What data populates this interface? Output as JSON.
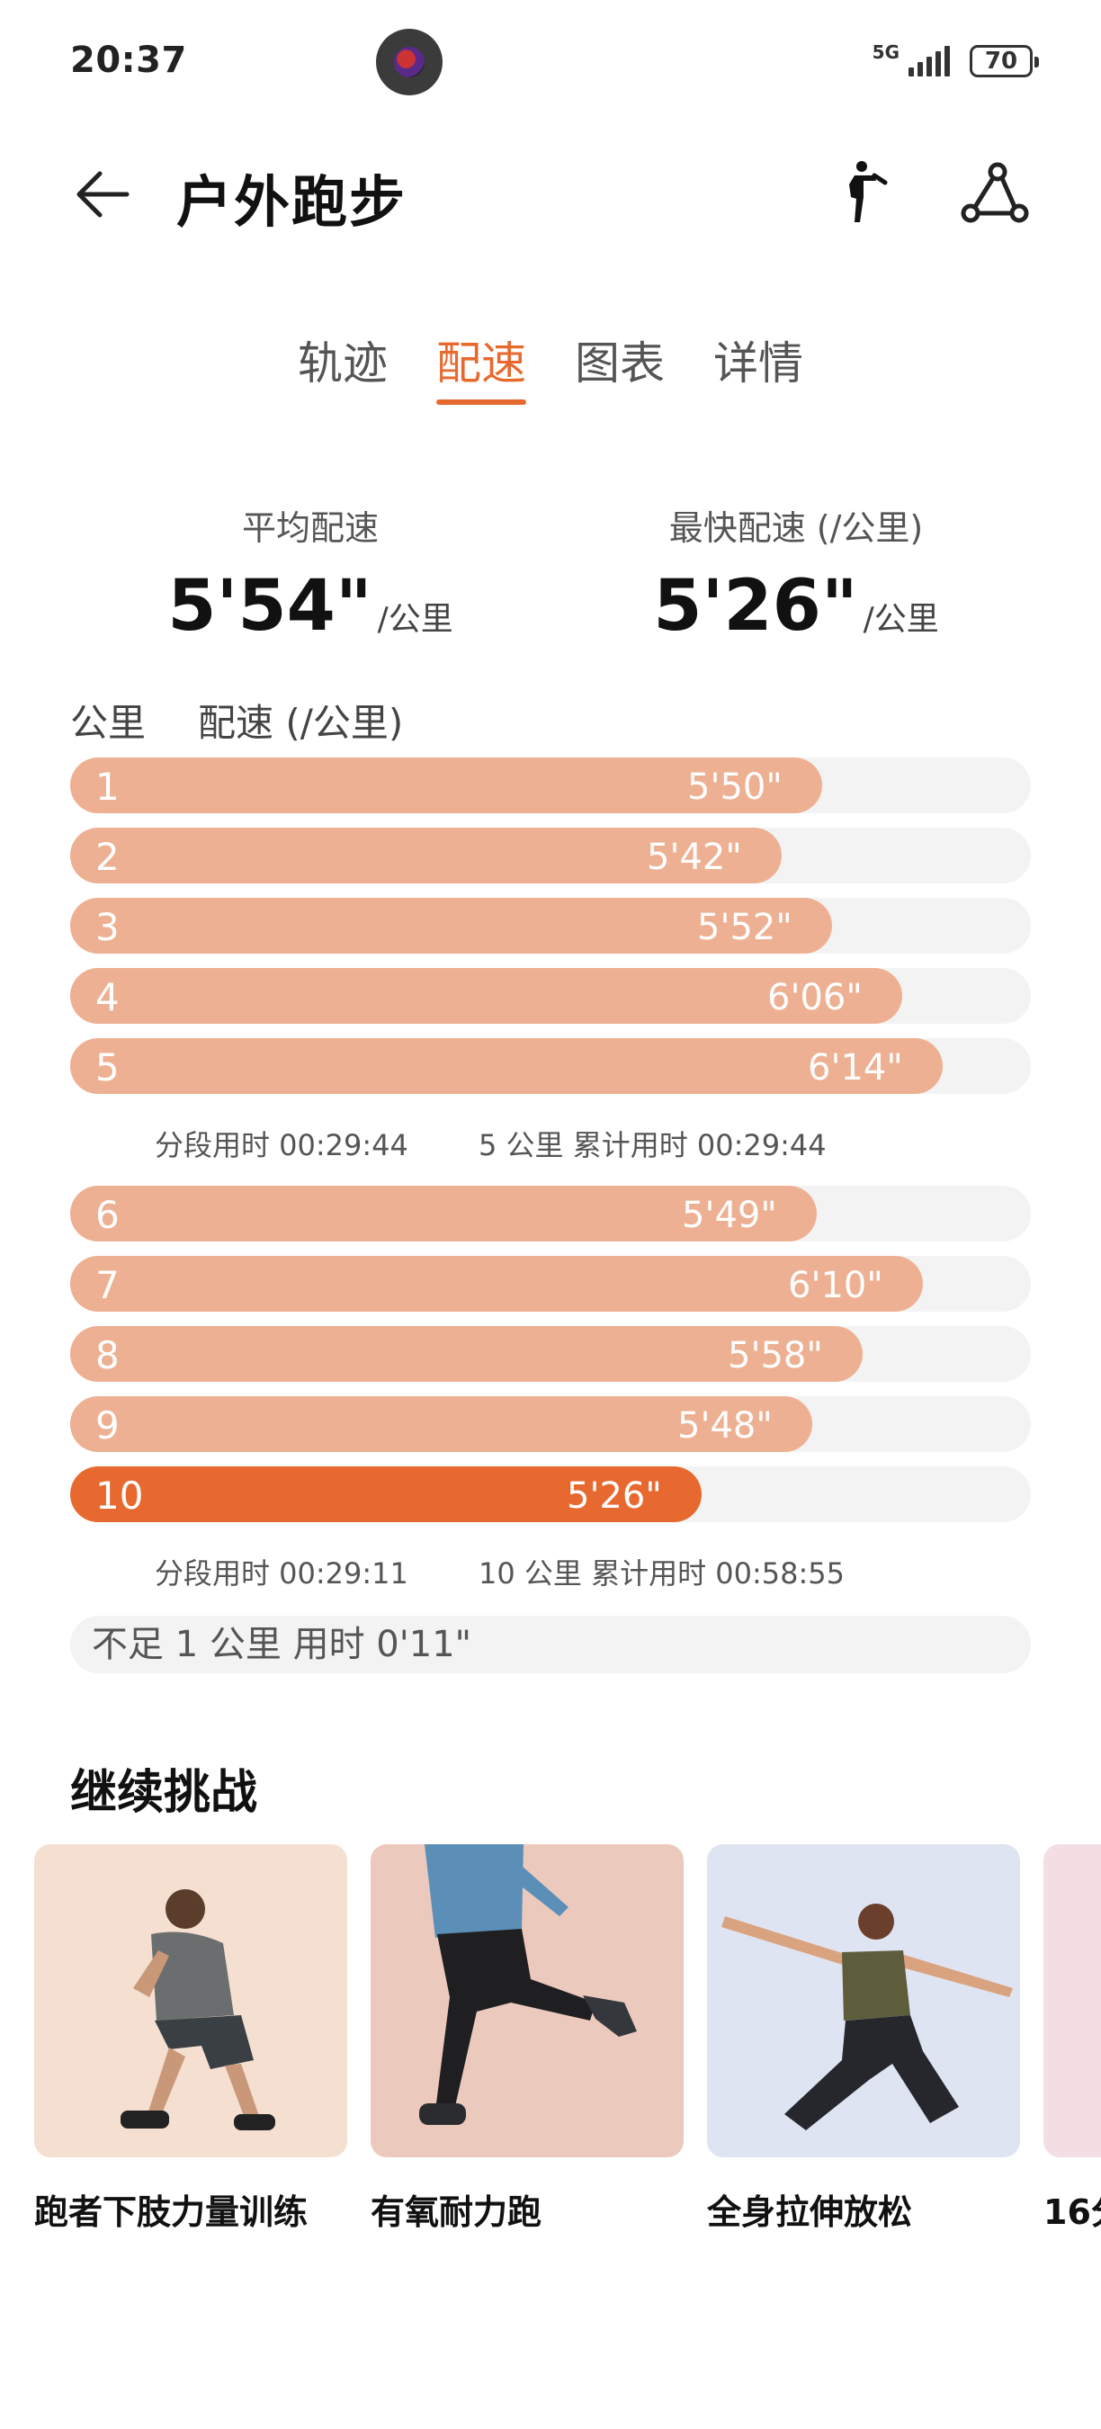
{
  "status": {
    "time": "20:37",
    "network": "5G",
    "battery": "70"
  },
  "header": {
    "title": "户外跑步"
  },
  "tabs": [
    {
      "label": "轨迹",
      "active": false
    },
    {
      "label": "配速",
      "active": true
    },
    {
      "label": "图表",
      "active": false
    },
    {
      "label": "详情",
      "active": false
    }
  ],
  "summary": {
    "avg": {
      "label": "平均配速",
      "value": "5'54\"",
      "unit": "/公里"
    },
    "fastest": {
      "label": "最快配速 (/公里)",
      "value": "5'26\"",
      "unit": "/公里"
    }
  },
  "table": {
    "col_km": "公里",
    "col_pace": "配速 (/公里)"
  },
  "colors": {
    "accent": "#e8692f",
    "bar": "#eeb092",
    "track": "#f3f3f3"
  },
  "splits": [
    {
      "km": "1",
      "pace": "5'50\"",
      "seconds": 350
    },
    {
      "km": "2",
      "pace": "5'42\"",
      "seconds": 342
    },
    {
      "km": "3",
      "pace": "5'52\"",
      "seconds": 352
    },
    {
      "km": "4",
      "pace": "6'06\"",
      "seconds": 366
    },
    {
      "km": "5",
      "pace": "6'14\"",
      "seconds": 374
    },
    {
      "km": "6",
      "pace": "5'49\"",
      "seconds": 349
    },
    {
      "km": "7",
      "pace": "6'10\"",
      "seconds": 370
    },
    {
      "km": "8",
      "pace": "5'58\"",
      "seconds": 358
    },
    {
      "km": "9",
      "pace": "5'48\"",
      "seconds": 348
    },
    {
      "km": "10",
      "pace": "5'26\"",
      "seconds": 326,
      "fastest": true
    }
  ],
  "segments": [
    {
      "split": "分段用时 00:29:44",
      "cumulative": "5 公里 累计用时 00:29:44"
    },
    {
      "split": "分段用时 00:29:11",
      "cumulative": "10 公里 累计用时 00:58:55"
    }
  ],
  "remainder": "不足 1 公里 用时 0'11\"",
  "challenge": {
    "title": "继续挑战",
    "cards": [
      {
        "label": "跑者下肢力量训练"
      },
      {
        "label": "有氧耐力跑"
      },
      {
        "label": "全身拉伸放松"
      },
      {
        "label": "16分"
      }
    ]
  }
}
